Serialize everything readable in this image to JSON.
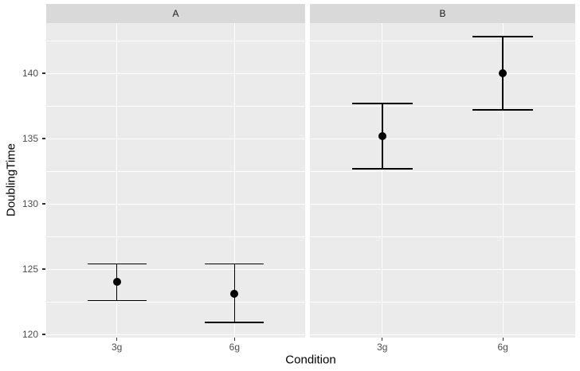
{
  "chart_data": {
    "type": "pointrange",
    "title": "",
    "xlabel": "Condition",
    "ylabel": "DoublingTime",
    "x_categories": [
      "3g",
      "6g"
    ],
    "ylim": [
      119.8,
      143.8
    ],
    "y_major_ticks": [
      120,
      125,
      130,
      135,
      140
    ],
    "y_minor_ticks": [
      122.5,
      127.5,
      132.5,
      137.5,
      142.5
    ],
    "legend_position": "none",
    "grid": "white major and minor horizontal gridlines plus vertical major gridlines at categories, on grey panel",
    "facets": [
      {
        "label": "A",
        "points": [
          {
            "category": "3g",
            "mean": 124.0,
            "lower": 122.6,
            "upper": 125.4
          },
          {
            "category": "6g",
            "mean": 123.1,
            "lower": 120.9,
            "upper": 125.4
          }
        ]
      },
      {
        "label": "B",
        "points": [
          {
            "category": "3g",
            "mean": 135.2,
            "lower": 132.7,
            "upper": 137.7
          },
          {
            "category": "6g",
            "mean": 140.0,
            "lower": 137.2,
            "upper": 142.8
          }
        ]
      }
    ]
  },
  "colors": {
    "background": "#FFFFFF",
    "panel_background": "#EBEBEB",
    "strip_background": "#D9D9D9",
    "gridline": "#FFFFFF",
    "point": "#000000",
    "errorbar": "#000000",
    "tick_label": "#4D4D4D",
    "axis_title": "#000000",
    "strip_text": "#1A1A1A",
    "tick_mark": "#333333"
  }
}
